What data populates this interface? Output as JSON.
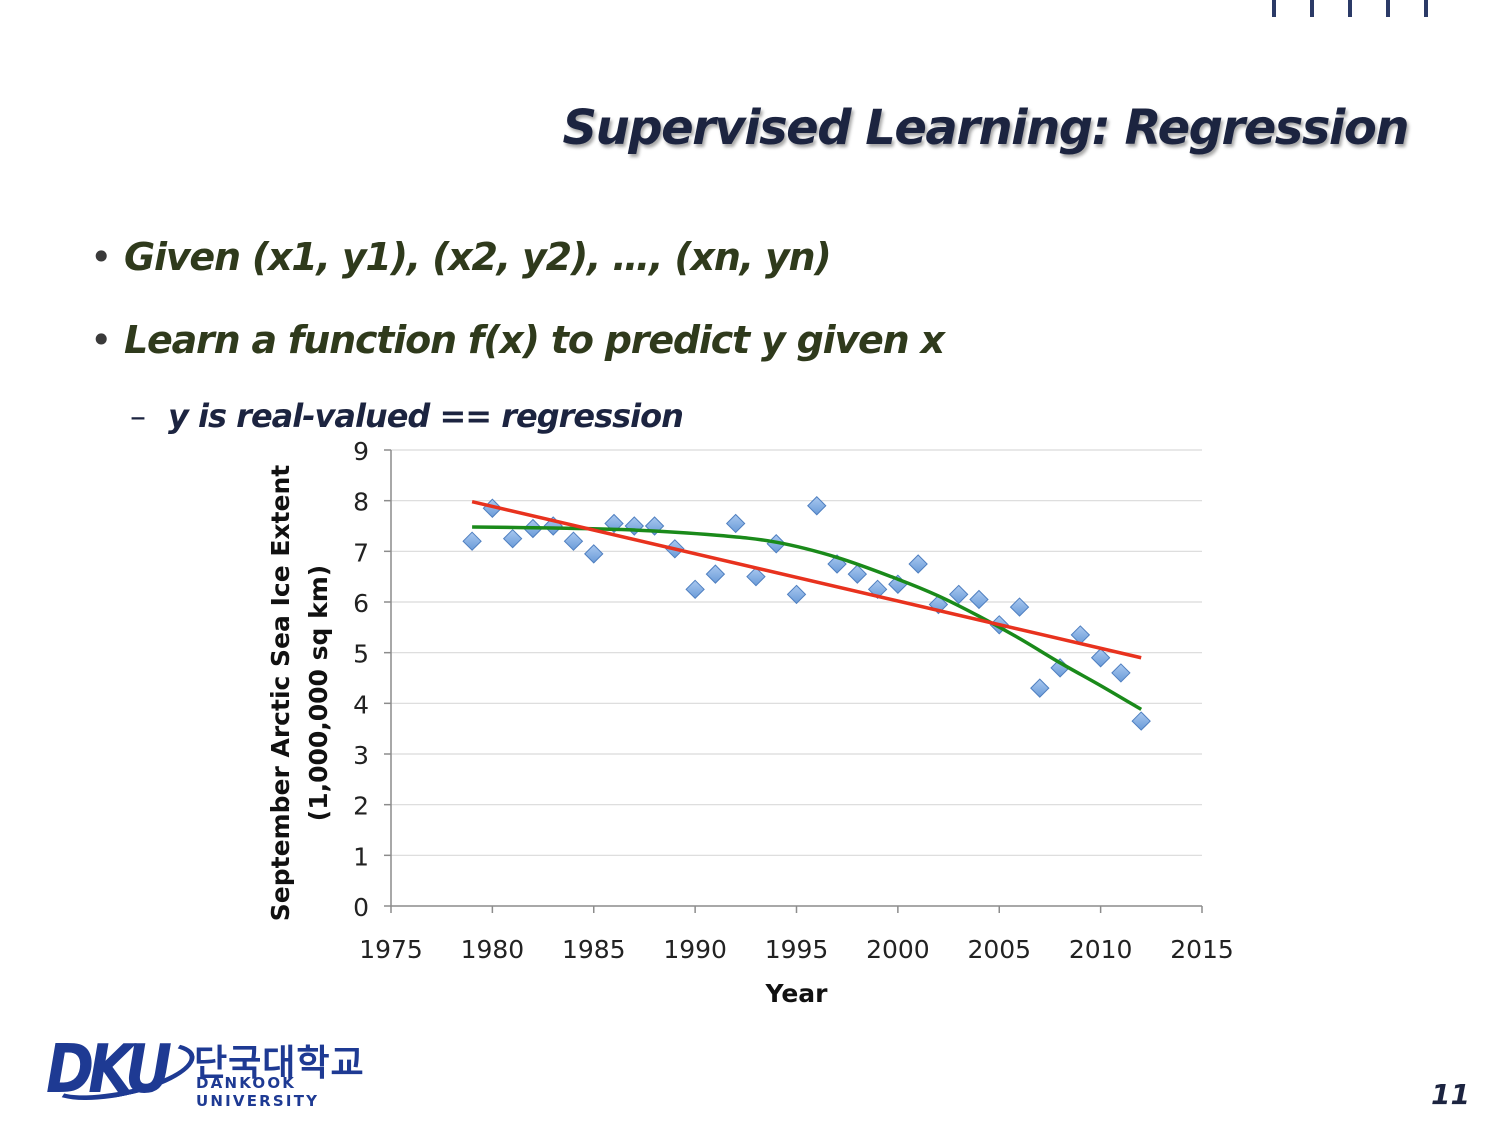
{
  "slide": {
    "title": "Supervised Learning: Regression",
    "bullets": [
      "Given (x1, y1), (x2, y2), …, (xn, yn)",
      "Learn a function f(x) to predict y given x"
    ],
    "sub_bullet": "y is real-valued == regression",
    "page_number": "11"
  },
  "logo": {
    "mark": "DKU",
    "korean": "단국대학교",
    "english": "DANKOOK UNIVERSITY"
  },
  "colors": {
    "title": "#1c2440",
    "bullet_text": "#2f3a1c",
    "points": "#6a9bd8",
    "linear_fit": "#e8321e",
    "curve_fit": "#1a8a1a",
    "logo": "#1e3a93"
  },
  "chart_data": {
    "type": "scatter",
    "title": "",
    "xlabel": "Year",
    "ylabel_lines": [
      "September Arctic Sea Ice Extent",
      "(1,000,000 sq km)"
    ],
    "xlim": [
      1975,
      2015
    ],
    "ylim": [
      0,
      9
    ],
    "x_ticks": [
      1975,
      1980,
      1985,
      1990,
      1995,
      2000,
      2005,
      2010,
      2015
    ],
    "y_ticks": [
      0,
      1,
      2,
      3,
      4,
      5,
      6,
      7,
      8,
      9
    ],
    "grid": "horizontal",
    "legend": "none",
    "series": [
      {
        "type": "scatter",
        "marker": "diamond",
        "x": [
          1979,
          1980,
          1981,
          1982,
          1983,
          1984,
          1985,
          1986,
          1987,
          1988,
          1989,
          1990,
          1991,
          1992,
          1993,
          1994,
          1995,
          1996,
          1997,
          1998,
          1999,
          2000,
          2001,
          2002,
          2003,
          2004,
          2005,
          2006,
          2007,
          2008,
          2009,
          2010,
          2011,
          2012
        ],
        "y": [
          7.2,
          7.85,
          7.25,
          7.45,
          7.5,
          7.2,
          6.95,
          7.55,
          7.5,
          7.5,
          7.05,
          6.25,
          6.55,
          7.55,
          6.5,
          7.15,
          6.15,
          7.9,
          6.75,
          6.55,
          6.25,
          6.35,
          6.75,
          5.95,
          6.15,
          6.05,
          5.55,
          5.9,
          4.3,
          4.7,
          5.35,
          4.9,
          4.6,
          3.65
        ]
      },
      {
        "type": "line",
        "x": [
          1979,
          2012
        ],
        "y": [
          7.98,
          4.9
        ]
      },
      {
        "type": "line",
        "x": [
          1979,
          1983,
          1987,
          1991,
          1994,
          1997,
          2000,
          2002,
          2004,
          2006,
          2008,
          2010,
          2012
        ],
        "y": [
          7.48,
          7.46,
          7.42,
          7.32,
          7.18,
          6.88,
          6.45,
          6.12,
          5.72,
          5.28,
          4.8,
          4.35,
          3.88
        ]
      }
    ]
  }
}
